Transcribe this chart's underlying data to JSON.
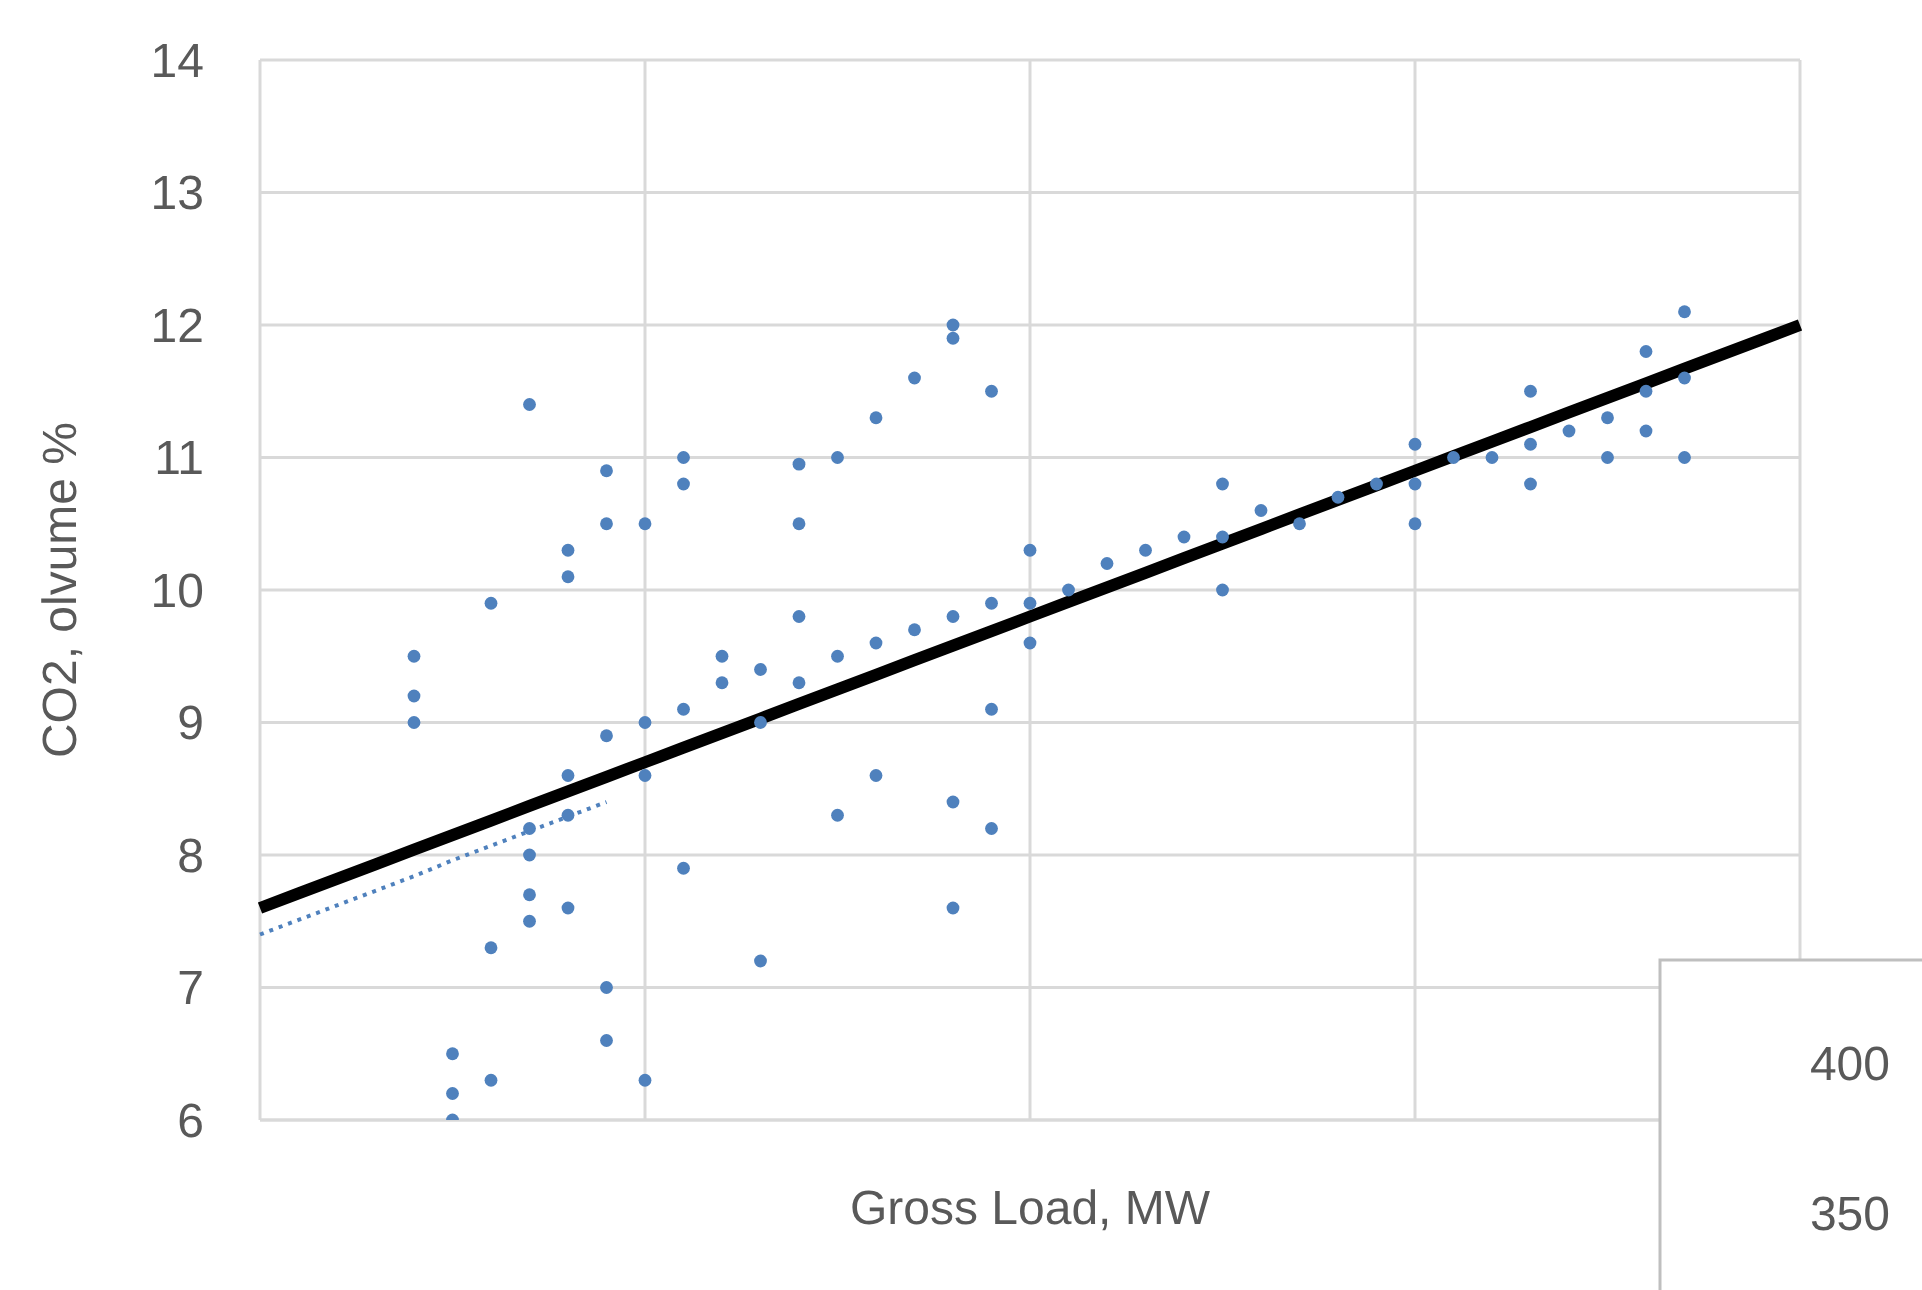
{
  "chart_data": {
    "type": "scatter",
    "xlabel": "Gross Load, MW",
    "ylabel": "CO2, olvume %",
    "ylim": [
      6,
      14
    ],
    "yticks": [
      6,
      7,
      8,
      9,
      10,
      11,
      12,
      13,
      14
    ],
    "grid": true,
    "marker": "circle",
    "annotations": [
      "400",
      "350"
    ],
    "categories": [
      null,
      null,
      null,
      null,
      null,
      null,
      null,
      null,
      null,
      null,
      null,
      null,
      null,
      null,
      null,
      null,
      null,
      null,
      null,
      null,
      null,
      null,
      null,
      null,
      null,
      null,
      null,
      null,
      null,
      null,
      null,
      null,
      null,
      null,
      null,
      null,
      null,
      null,
      null,
      null,
      null
    ],
    "series": [
      {
        "color": "#4f81bd",
        "values": [
          null,
          null,
          null,
          null,
          9.5,
          6.5,
          7.3,
          7.5,
          8.6,
          8.9,
          9.0,
          9.1,
          9.3,
          9.4,
          9.3,
          9.5,
          9.6,
          9.7,
          9.8,
          9.9,
          9.9,
          10.0,
          10.2,
          10.3,
          10.4,
          10.4,
          10.6,
          10.5,
          10.7,
          10.8,
          10.8,
          11.0,
          11.0,
          11.1,
          11.2,
          11.3,
          11.5,
          12.1,
          null,
          null,
          null
        ]
      },
      {
        "color": "#4f81bd",
        "values": [
          null,
          null,
          null,
          null,
          9.2,
          6.2,
          6.3,
          8.0,
          8.3,
          7.0,
          8.6,
          10.8,
          9.5,
          9.0,
          9.8,
          11.0,
          11.3,
          11.6,
          11.9,
          11.5,
          10.3,
          null,
          null,
          null,
          null,
          10.0,
          null,
          null,
          null,
          null,
          10.5,
          null,
          null,
          11.5,
          null,
          11.0,
          11.2,
          11.0,
          null,
          null,
          null
        ]
      },
      {
        "color": "#4f81bd",
        "values": [
          null,
          null,
          null,
          null,
          9.0,
          6.0,
          9.9,
          7.7,
          7.6,
          6.6,
          6.3,
          11.0,
          null,
          7.2,
          10.95,
          8.3,
          8.6,
          null,
          8.4,
          9.1,
          9.6,
          null,
          null,
          null,
          null,
          10.8,
          null,
          null,
          null,
          null,
          11.1,
          null,
          null,
          10.8,
          null,
          null,
          11.8,
          11.6,
          null,
          null,
          null
        ]
      },
      {
        "color": "#4f81bd",
        "values": [
          null,
          null,
          null,
          null,
          null,
          null,
          null,
          8.2,
          10.1,
          10.5,
          10.5,
          7.9,
          null,
          null,
          10.5,
          null,
          null,
          null,
          7.6,
          8.2,
          null,
          null,
          null,
          null,
          null,
          null,
          null,
          null,
          null,
          null,
          null,
          null,
          null,
          null,
          null,
          null,
          null,
          null,
          null,
          null,
          null
        ]
      },
      {
        "color": "#4f81bd",
        "values": [
          null,
          null,
          null,
          null,
          null,
          null,
          null,
          11.4,
          10.3,
          10.9,
          null,
          null,
          null,
          null,
          null,
          null,
          null,
          null,
          12.0,
          null,
          null,
          null,
          null,
          null,
          null,
          null,
          null,
          null,
          null,
          null,
          null,
          null,
          null,
          null,
          null,
          null,
          null,
          null,
          null,
          null,
          null
        ]
      },
      {
        "type": "line",
        "color": "#000000",
        "line_style": "solid",
        "marker": "none",
        "values": [
          7.6,
          7.71,
          7.82,
          7.93,
          8.04,
          8.15,
          8.26,
          8.37,
          8.48,
          8.59,
          8.7,
          8.81,
          8.92,
          9.03,
          9.14,
          9.25,
          9.36,
          9.47,
          9.58,
          9.69,
          9.8,
          9.91,
          10.02,
          10.13,
          10.24,
          10.35,
          10.46,
          10.57,
          10.68,
          10.79,
          10.9,
          11.01,
          11.12,
          11.23,
          11.34,
          11.45,
          11.56,
          11.67,
          11.78,
          11.89,
          12.0
        ]
      },
      {
        "type": "line",
        "color": "#4f81bd",
        "line_style": "dotted",
        "marker": "none",
        "values": [
          7.4,
          7.51,
          7.62,
          7.73,
          7.84,
          7.96,
          8.07,
          8.18,
          8.29,
          8.4,
          null,
          null,
          null,
          null,
          null,
          null,
          null,
          null,
          null,
          null,
          null,
          null,
          null,
          null,
          null,
          null,
          null,
          null,
          null,
          null,
          null,
          null,
          null,
          null,
          null,
          null,
          null,
          null,
          null,
          null,
          null
        ]
      }
    ]
  }
}
